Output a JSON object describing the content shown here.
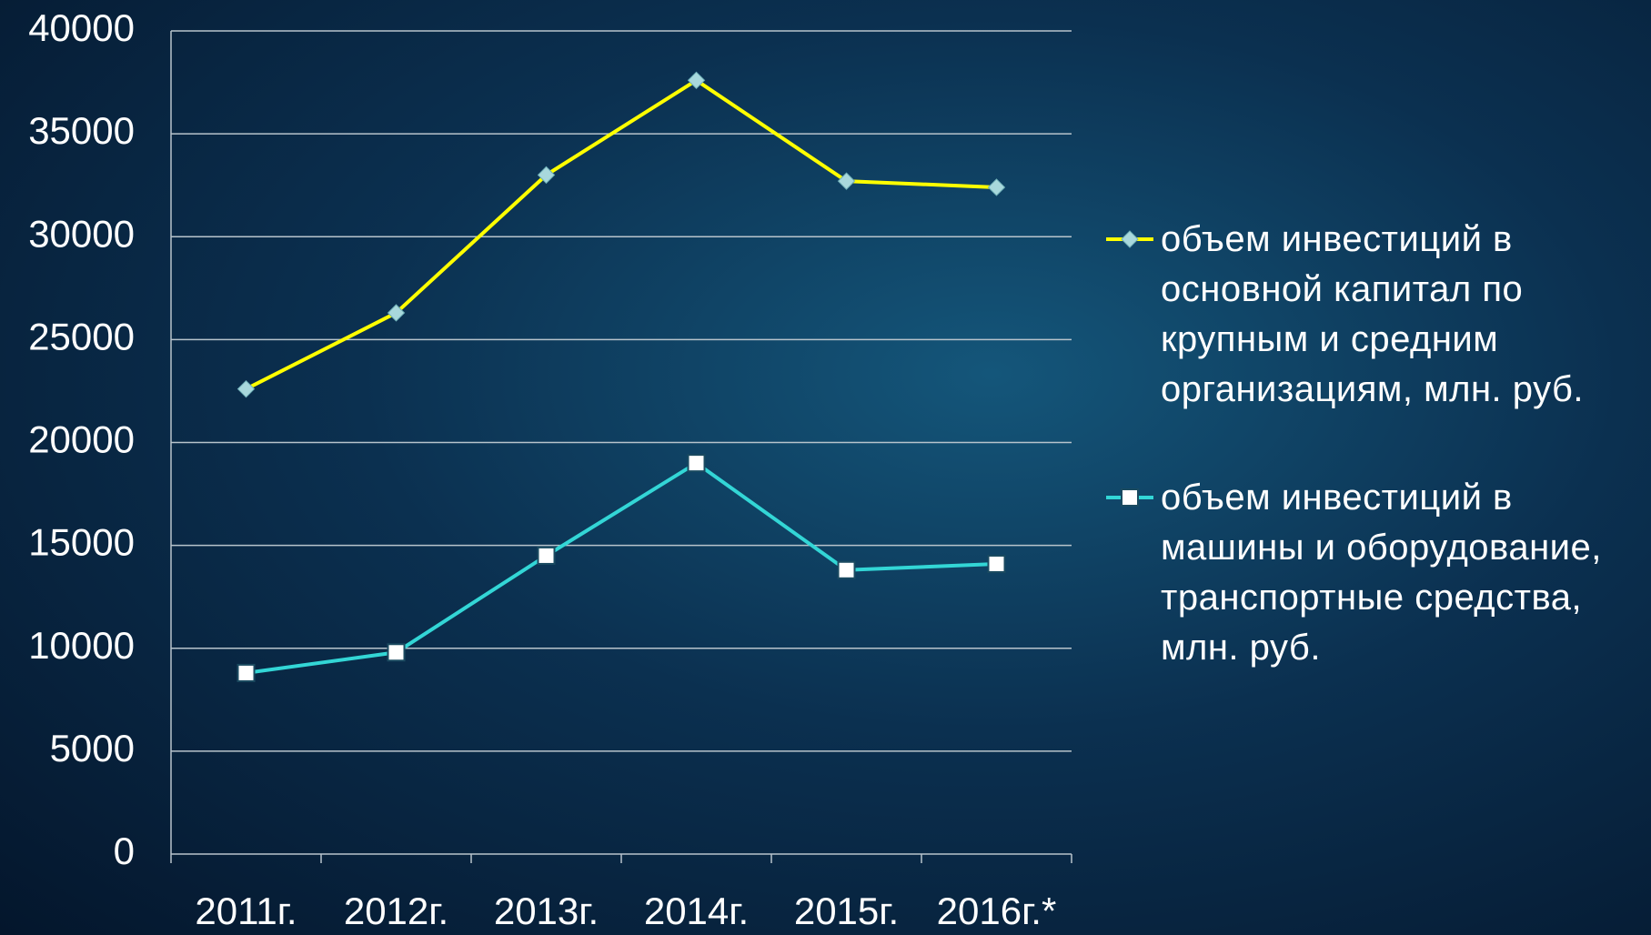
{
  "chart_data": {
    "type": "line",
    "categories": [
      "2011г.",
      "2012г.",
      "2013г.",
      "2014г.",
      "2015г.",
      "2016г.*"
    ],
    "series": [
      {
        "name": "объем инвестиций в основной капитал по крупным и средним организациям, млн. руб.",
        "color": "#ffff00",
        "marker": "diamond",
        "values": [
          22600,
          26300,
          33000,
          37600,
          32700,
          32400
        ]
      },
      {
        "name": "объем инвестиций в машины и оборудование, транспортные средства, млн. руб.",
        "color": "#33d6d6",
        "marker": "square",
        "values": [
          8800,
          9800,
          14500,
          19000,
          13800,
          14100
        ]
      }
    ],
    "ylim": [
      0,
      40000
    ],
    "yticks": [
      0,
      5000,
      10000,
      15000,
      20000,
      25000,
      30000,
      35000,
      40000
    ],
    "grid": true,
    "legend": "right"
  }
}
